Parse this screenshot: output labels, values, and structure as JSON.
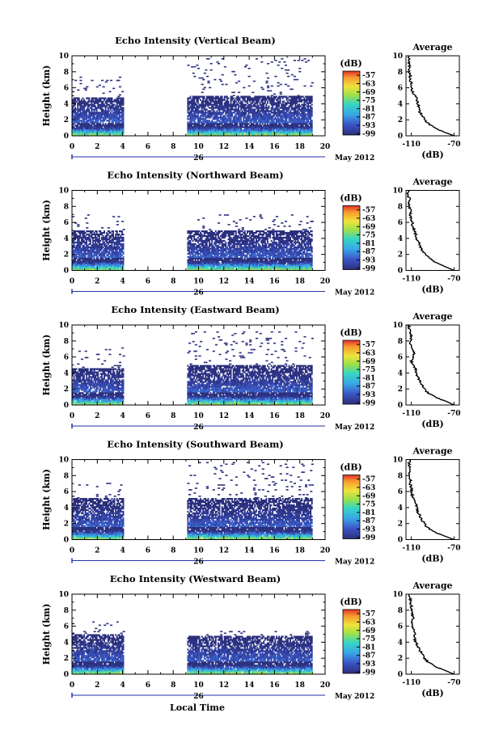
{
  "chart_data": [
    {
      "type": "heatmap",
      "title": "Echo Intensity (Vertical Beam)",
      "ylabel": "Height (km)",
      "xlim": [
        0,
        20
      ],
      "ylim": [
        0,
        10
      ],
      "x_ticks": [
        "0",
        "2",
        "4",
        "6",
        "8",
        "10",
        "12",
        "14",
        "16",
        "18",
        "20"
      ],
      "y_ticks": [
        "0",
        "2",
        "4",
        "6",
        "8",
        "10"
      ],
      "day_label": "26",
      "month_label": "May 2012",
      "colorbar": {
        "unit": "(dB)",
        "range": [
          -100,
          -54
        ],
        "ticks": [
          "-57",
          "-63",
          "-69",
          "-75",
          "-81",
          "-87",
          "-93",
          "-99"
        ]
      },
      "data_segments": [
        {
          "t_start": 0,
          "t_end": 4.1,
          "top_km": 4.8,
          "sparse_to_km": 7.5
        },
        {
          "t_start": 9.1,
          "t_end": 19.0,
          "top_km": 4.9,
          "sparse_to_km": 9.5
        }
      ],
      "average_profile": {
        "title": "Average",
        "xlabel": "(dB)",
        "x_ticks": [
          "-110",
          "-70"
        ],
        "xlim": [
          -115,
          -65
        ],
        "ylim": [
          0,
          10
        ],
        "height_km": [
          0.0,
          0.5,
          1.0,
          1.5,
          2.0,
          2.5,
          3.0,
          3.5,
          4.0,
          4.5,
          5.0,
          5.5,
          6.0,
          6.5,
          7.0,
          7.5,
          8.0,
          8.5,
          9.0,
          9.5,
          10.0
        ],
        "value_db": [
          -70,
          -80,
          -88,
          -94,
          -97,
          -99,
          -102,
          -103,
          -104,
          -105,
          -106,
          -109,
          -110,
          -110,
          -111,
          -111,
          -112,
          -112,
          -112,
          -112,
          -112
        ]
      }
    },
    {
      "type": "heatmap",
      "title": "Echo Intensity (Northward Beam)",
      "ylabel": "Height (km)",
      "xlim": [
        0,
        20
      ],
      "ylim": [
        0,
        10
      ],
      "x_ticks": [
        "0",
        "2",
        "4",
        "6",
        "8",
        "10",
        "12",
        "14",
        "16",
        "18",
        "20"
      ],
      "y_ticks": [
        "0",
        "2",
        "4",
        "6",
        "8",
        "10"
      ],
      "day_label": "26",
      "month_label": "May 2012",
      "colorbar": {
        "unit": "(dB)",
        "range": [
          -100,
          -54
        ],
        "ticks": [
          "-57",
          "-63",
          "-69",
          "-75",
          "-81",
          "-87",
          "-93",
          "-99"
        ]
      },
      "data_segments": [
        {
          "t_start": 0,
          "t_end": 4.1,
          "top_km": 5.0,
          "sparse_to_km": 7.2
        },
        {
          "t_start": 9.1,
          "t_end": 19.0,
          "top_km": 5.0,
          "sparse_to_km": 7.0
        }
      ],
      "average_profile": {
        "title": "Average",
        "xlabel": "(dB)",
        "x_ticks": [
          "-110",
          "-70"
        ],
        "xlim": [
          -115,
          -65
        ],
        "ylim": [
          0,
          10
        ],
        "height_km": [
          0.0,
          0.5,
          1.0,
          1.5,
          2.0,
          2.5,
          3.0,
          3.5,
          4.0,
          4.5,
          5.0,
          5.5,
          6.0,
          6.5,
          7.0,
          7.5,
          8.0,
          8.5,
          9.0,
          9.5,
          10.0
        ],
        "value_db": [
          -70,
          -79,
          -87,
          -93,
          -97,
          -100,
          -102,
          -103,
          -105,
          -106,
          -107,
          -109,
          -109,
          -110,
          -111,
          -111,
          -112,
          -112,
          -112,
          -113,
          -113
        ]
      }
    },
    {
      "type": "heatmap",
      "title": "Echo Intensity (Eastward Beam)",
      "ylabel": "Height (km)",
      "xlim": [
        0,
        20
      ],
      "ylim": [
        0,
        10
      ],
      "x_ticks": [
        "0",
        "2",
        "4",
        "6",
        "8",
        "10",
        "12",
        "14",
        "16",
        "18",
        "20"
      ],
      "y_ticks": [
        "0",
        "2",
        "4",
        "6",
        "8",
        "10"
      ],
      "day_label": "26",
      "month_label": "May 2012",
      "colorbar": {
        "unit": "(dB)",
        "range": [
          -100,
          -54
        ],
        "ticks": [
          "-57",
          "-63",
          "-69",
          "-75",
          "-81",
          "-87",
          "-93",
          "-99"
        ]
      },
      "data_segments": [
        {
          "t_start": 0,
          "t_end": 4.1,
          "top_km": 4.6,
          "sparse_to_km": 7.2
        },
        {
          "t_start": 9.1,
          "t_end": 19.0,
          "top_km": 5.0,
          "sparse_to_km": 9.0
        }
      ],
      "average_profile": {
        "title": "Average",
        "xlabel": "(dB)",
        "x_ticks": [
          "-110",
          "-70"
        ],
        "xlim": [
          -115,
          -65
        ],
        "ylim": [
          0,
          10
        ],
        "height_km": [
          0.0,
          0.5,
          1.0,
          1.5,
          2.0,
          2.5,
          3.0,
          3.5,
          4.0,
          4.5,
          5.0,
          5.5,
          6.0,
          6.5,
          7.0,
          7.5,
          8.0,
          8.5,
          9.0,
          9.5,
          10.0
        ],
        "value_db": [
          -70,
          -78,
          -88,
          -94,
          -98,
          -100,
          -102,
          -104,
          -105,
          -106,
          -108,
          -110,
          -108,
          -107,
          -109,
          -110,
          -111,
          -110,
          -111,
          -112,
          -112
        ]
      }
    },
    {
      "type": "heatmap",
      "title": "Echo Intensity (Southward Beam)",
      "ylabel": "Height (km)",
      "xlim": [
        0,
        20
      ],
      "ylim": [
        0,
        10
      ],
      "x_ticks": [
        "0",
        "2",
        "4",
        "6",
        "8",
        "10",
        "12",
        "14",
        "16",
        "18",
        "20"
      ],
      "y_ticks": [
        "0",
        "2",
        "4",
        "6",
        "8",
        "10"
      ],
      "day_label": "26",
      "month_label": "May 2012",
      "colorbar": {
        "unit": "(dB)",
        "range": [
          -100,
          -54
        ],
        "ticks": [
          "-57",
          "-63",
          "-69",
          "-75",
          "-81",
          "-87",
          "-93",
          "-99"
        ]
      },
      "data_segments": [
        {
          "t_start": 0,
          "t_end": 4.1,
          "top_km": 5.1,
          "sparse_to_km": 7.0
        },
        {
          "t_start": 9.1,
          "t_end": 19.0,
          "top_km": 5.1,
          "sparse_to_km": 9.6
        }
      ],
      "average_profile": {
        "title": "Average",
        "xlabel": "(dB)",
        "x_ticks": [
          "-110",
          "-70"
        ],
        "xlim": [
          -115,
          -65
        ],
        "ylim": [
          0,
          10
        ],
        "height_km": [
          0.0,
          0.5,
          1.0,
          1.5,
          2.0,
          2.5,
          3.0,
          3.5,
          4.0,
          4.5,
          5.0,
          5.5,
          6.0,
          6.5,
          7.0,
          7.5,
          8.0,
          8.5,
          9.0,
          9.5,
          10.0
        ],
        "value_db": [
          -70,
          -80,
          -89,
          -95,
          -98,
          -100,
          -102,
          -104,
          -105,
          -106,
          -107,
          -109,
          -110,
          -110,
          -111,
          -111,
          -112,
          -112,
          -112,
          -112,
          -112
        ]
      }
    },
    {
      "type": "heatmap",
      "title": "Echo Intensity (Westward Beam)",
      "ylabel": "Height (km)",
      "xlim": [
        0,
        20
      ],
      "ylim": [
        0,
        10
      ],
      "x_ticks": [
        "0",
        "2",
        "4",
        "6",
        "8",
        "10",
        "12",
        "14",
        "16",
        "18",
        "20"
      ],
      "y_ticks": [
        "0",
        "2",
        "4",
        "6",
        "8",
        "10"
      ],
      "day_label": "26",
      "month_label": "May 2012",
      "colorbar": {
        "unit": "(dB)",
        "range": [
          -100,
          -54
        ],
        "ticks": [
          "-57",
          "-63",
          "-69",
          "-75",
          "-81",
          "-87",
          "-93",
          "-99"
        ]
      },
      "data_segments": [
        {
          "t_start": 0,
          "t_end": 4.1,
          "top_km": 5.0,
          "sparse_to_km": 6.5
        },
        {
          "t_start": 9.1,
          "t_end": 19.0,
          "top_km": 4.8,
          "sparse_to_km": 5.3
        }
      ],
      "average_profile": {
        "title": "Average",
        "xlabel": "(dB)",
        "x_ticks": [
          "-110",
          "-70"
        ],
        "xlim": [
          -115,
          -65
        ],
        "ylim": [
          0,
          10
        ],
        "height_km": [
          0.0,
          0.5,
          1.0,
          1.5,
          2.0,
          2.5,
          3.0,
          3.5,
          4.0,
          4.5,
          5.0,
          5.5,
          6.0,
          6.5,
          7.0,
          7.5,
          8.0,
          8.5,
          9.0,
          9.5,
          10.0
        ],
        "value_db": [
          -70,
          -79,
          -88,
          -94,
          -98,
          -100,
          -102,
          -104,
          -106,
          -107,
          -107,
          -108,
          -109,
          -109,
          -108,
          -109,
          -110,
          -110,
          -111,
          -111,
          -112
        ]
      }
    }
  ],
  "footer": {
    "xlabel": "Local Time"
  }
}
